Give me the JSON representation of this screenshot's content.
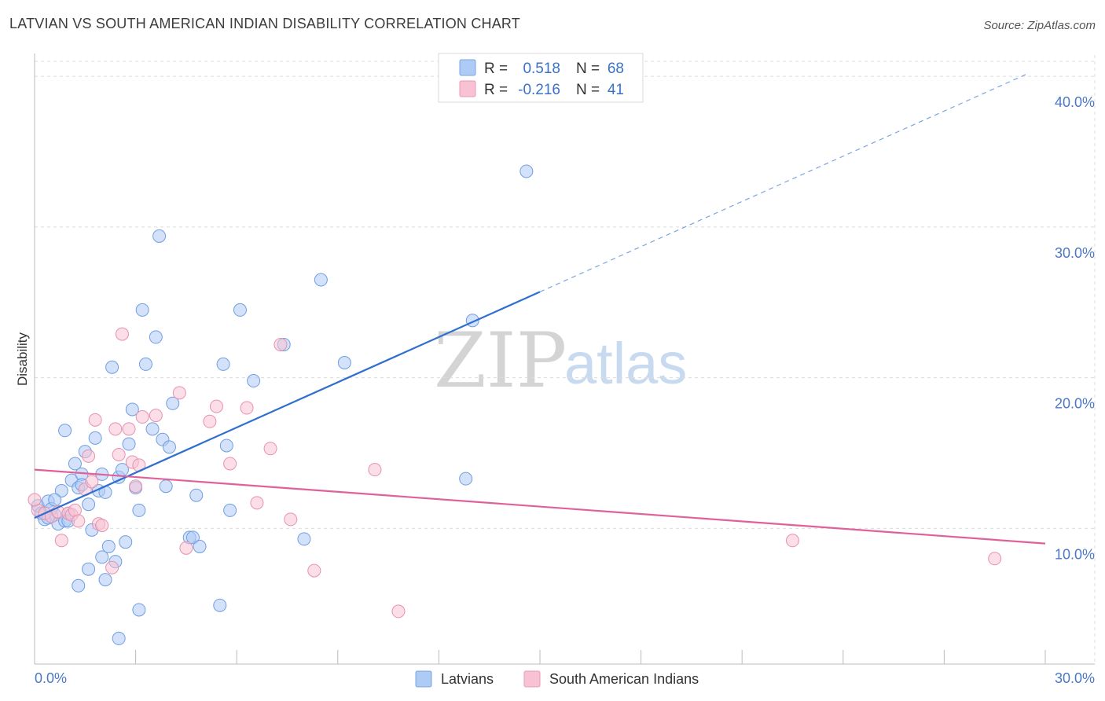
{
  "title": "LATVIAN VS SOUTH AMERICAN INDIAN DISABILITY CORRELATION CHART",
  "source": "Source: ZipAtlas.com",
  "watermark": {
    "zip": "ZIP",
    "atlas": "atlas"
  },
  "legend": {
    "r_label": "R =",
    "n_label": "N =",
    "rows": [
      {
        "name": "Latvians",
        "r": "0.518",
        "n": "68",
        "color": "#aecbf5",
        "stroke": "#7aa4e0"
      },
      {
        "name": "South American Indians",
        "r": "-0.216",
        "n": "41",
        "color": "#f8c2d4",
        "stroke": "#e89ab5"
      }
    ]
  },
  "chart_data": {
    "type": "scatter",
    "xlabel": "",
    "ylabel": "Disability",
    "xlim": [
      0,
      30
    ],
    "ylim": [
      1,
      41
    ],
    "x_tick_labels": [
      "0.0%",
      "30.0%"
    ],
    "y_ticks": [
      10,
      20,
      30,
      40
    ],
    "y_tick_labels": [
      "10.0%",
      "20.0%",
      "30.0%",
      "40.0%"
    ],
    "series": [
      {
        "name": "Latvians",
        "color": "#aecbf5",
        "stroke": "#6f9ee0",
        "trend": {
          "x0": 0,
          "y0": 10.7,
          "x1": 15,
          "y1": 25.7,
          "dash_to_x": 29.5,
          "dash_to_y": 40.2,
          "color": "#2f6fcf"
        },
        "points": [
          [
            0.1,
            11.5
          ],
          [
            0.2,
            11.0
          ],
          [
            0.3,
            10.6
          ],
          [
            0.4,
            11.8
          ],
          [
            0.5,
            11.3
          ],
          [
            0.6,
            10.9
          ],
          [
            0.7,
            10.3
          ],
          [
            0.8,
            12.5
          ],
          [
            0.9,
            10.5
          ],
          [
            1.0,
            11.0
          ],
          [
            0.9,
            16.5
          ],
          [
            1.1,
            13.2
          ],
          [
            1.2,
            14.3
          ],
          [
            1.3,
            12.7
          ],
          [
            1.4,
            13.6
          ],
          [
            1.5,
            15.1
          ],
          [
            1.6,
            11.6
          ],
          [
            1.7,
            9.9
          ],
          [
            1.8,
            16.0
          ],
          [
            1.9,
            12.5
          ],
          [
            2.0,
            13.6
          ],
          [
            2.1,
            12.4
          ],
          [
            2.2,
            8.8
          ],
          [
            2.3,
            20.7
          ],
          [
            2.4,
            7.8
          ],
          [
            2.5,
            13.4
          ],
          [
            2.6,
            13.9
          ],
          [
            2.7,
            9.1
          ],
          [
            2.8,
            15.6
          ],
          [
            2.9,
            17.9
          ],
          [
            3.0,
            12.7
          ],
          [
            3.1,
            11.2
          ],
          [
            3.2,
            24.5
          ],
          [
            3.3,
            20.9
          ],
          [
            3.5,
            16.6
          ],
          [
            3.6,
            22.7
          ],
          [
            3.7,
            29.4
          ],
          [
            3.8,
            15.9
          ],
          [
            3.9,
            12.8
          ],
          [
            4.0,
            15.4
          ],
          [
            4.1,
            18.3
          ],
          [
            4.6,
            9.4
          ],
          [
            4.7,
            9.4
          ],
          [
            4.8,
            12.2
          ],
          [
            4.9,
            8.8
          ],
          [
            5.5,
            4.9
          ],
          [
            5.6,
            20.9
          ],
          [
            5.7,
            15.5
          ],
          [
            5.8,
            11.2
          ],
          [
            6.1,
            24.5
          ],
          [
            6.5,
            19.8
          ],
          [
            7.4,
            22.2
          ],
          [
            8.0,
            9.3
          ],
          [
            8.5,
            26.5
          ],
          [
            9.2,
            21.0
          ],
          [
            12.8,
            13.3
          ],
          [
            13.0,
            23.8
          ],
          [
            14.6,
            33.7
          ],
          [
            1.3,
            6.2
          ],
          [
            1.6,
            7.3
          ],
          [
            2.0,
            8.1
          ],
          [
            2.1,
            6.6
          ],
          [
            2.5,
            2.7
          ],
          [
            3.1,
            4.6
          ],
          [
            0.4,
            10.7
          ],
          [
            0.6,
            11.9
          ],
          [
            1.0,
            10.5
          ],
          [
            1.4,
            12.9
          ]
        ]
      },
      {
        "name": "South American Indians",
        "color": "#f8c2d4",
        "stroke": "#e691b0",
        "trend": {
          "x0": 0,
          "y0": 13.9,
          "x1": 30,
          "y1": 9.0,
          "color": "#e0609a"
        },
        "points": [
          [
            0.1,
            11.2
          ],
          [
            0.3,
            11.0
          ],
          [
            0.5,
            10.8
          ],
          [
            0.7,
            11.1
          ],
          [
            0.8,
            9.2
          ],
          [
            1.0,
            11.0
          ],
          [
            1.1,
            10.9
          ],
          [
            1.2,
            11.2
          ],
          [
            1.3,
            10.5
          ],
          [
            1.5,
            12.6
          ],
          [
            1.6,
            14.8
          ],
          [
            1.7,
            13.1
          ],
          [
            1.8,
            17.2
          ],
          [
            1.9,
            10.3
          ],
          [
            2.0,
            10.2
          ],
          [
            2.3,
            7.4
          ],
          [
            2.4,
            16.6
          ],
          [
            2.5,
            14.9
          ],
          [
            2.6,
            22.9
          ],
          [
            2.8,
            16.6
          ],
          [
            2.9,
            14.4
          ],
          [
            3.0,
            12.8
          ],
          [
            3.1,
            14.2
          ],
          [
            3.2,
            17.4
          ],
          [
            3.6,
            17.5
          ],
          [
            4.3,
            19.0
          ],
          [
            4.5,
            8.7
          ],
          [
            5.2,
            17.1
          ],
          [
            5.4,
            18.1
          ],
          [
            5.8,
            14.3
          ],
          [
            6.3,
            18.0
          ],
          [
            6.6,
            11.7
          ],
          [
            7.0,
            15.3
          ],
          [
            7.3,
            22.2
          ],
          [
            7.6,
            10.6
          ],
          [
            8.3,
            7.2
          ],
          [
            10.1,
            13.9
          ],
          [
            10.8,
            4.5
          ],
          [
            22.5,
            9.2
          ],
          [
            28.5,
            8.0
          ],
          [
            0.0,
            11.9
          ]
        ]
      }
    ]
  }
}
